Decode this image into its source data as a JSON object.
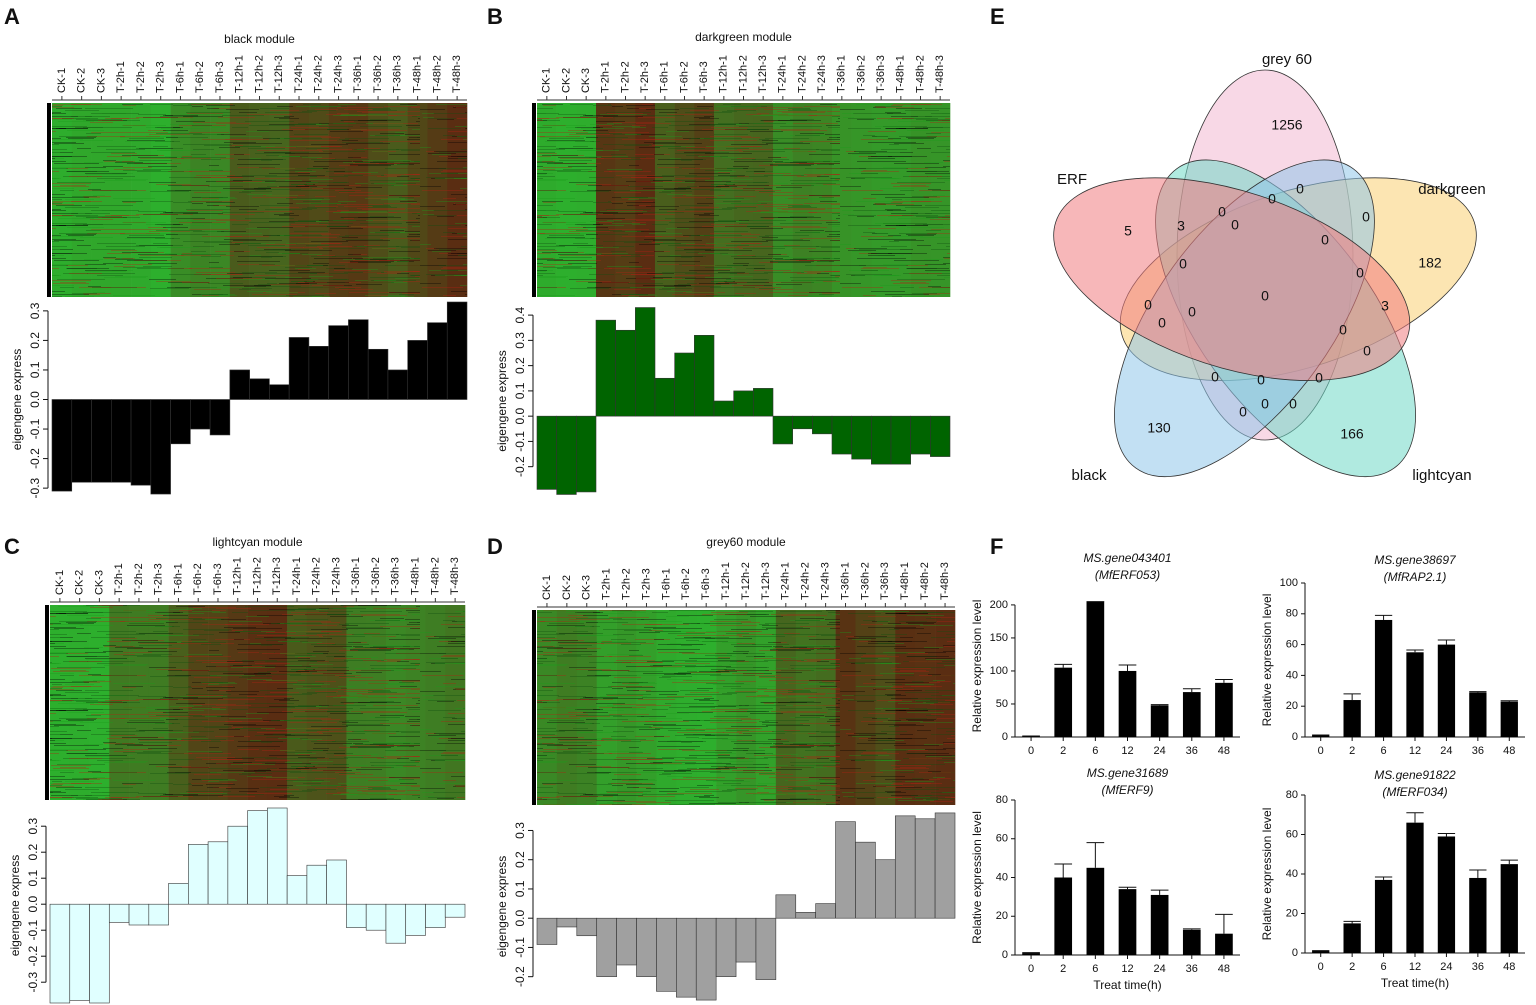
{
  "chart_data": [
    {
      "type": "bar",
      "label": "A",
      "title": "black module",
      "heatmap": true,
      "categories": [
        "CK-1",
        "CK-2",
        "CK-3",
        "T-2h-1",
        "T-2h-2",
        "T-2h-3",
        "T-6h-1",
        "T-6h-2",
        "T-6h-3",
        "T-12h-1",
        "T-12h-2",
        "T-12h-3",
        "T-24h-1",
        "T-24h-2",
        "T-24h-3",
        "T-36h-1",
        "T-36h-2",
        "T-36h-3",
        "T-48h-1",
        "T-48h-2",
        "T-48h-3"
      ],
      "values": [
        -0.31,
        -0.28,
        -0.28,
        -0.28,
        -0.29,
        -0.32,
        -0.15,
        -0.1,
        -0.12,
        0.1,
        0.07,
        0.05,
        0.21,
        0.18,
        0.25,
        0.27,
        0.17,
        0.1,
        0.2,
        0.26,
        0.33
      ],
      "color": "#000000",
      "ylabel": "eigengene express",
      "ylim": [
        -0.33,
        0.33
      ],
      "yticks": [
        -0.3,
        -0.2,
        -0.1,
        {
          "value": 0,
          "label": "0.0"
        },
        0.1,
        0.2,
        0.3
      ]
    },
    {
      "type": "bar",
      "label": "B",
      "title": "darkgreen module",
      "heatmap": true,
      "categories": [
        "CK-1",
        "CK-2",
        "CK-3",
        "T-2h-1",
        "T-2h-2",
        "T-2h-3",
        "T-6h-1",
        "T-6h-2",
        "T-6h-3",
        "T-12h-1",
        "T-12h-2",
        "T-12h-3",
        "T-24h-1",
        "T-24h-2",
        "T-24h-3",
        "T-36h-1",
        "T-36h-2",
        "T-36h-3",
        "T-48h-1",
        "T-48h-2",
        "T-48h-3"
      ],
      "values": [
        -0.29,
        -0.31,
        -0.3,
        0.38,
        0.34,
        0.43,
        0.15,
        0.25,
        0.32,
        0.06,
        0.1,
        0.11,
        -0.11,
        -0.05,
        -0.07,
        -0.15,
        -0.17,
        -0.19,
        -0.19,
        -0.15,
        -0.16
      ],
      "color": "#006400",
      "ylabel": "eigengene express",
      "ylim": [
        -0.32,
        0.44
      ],
      "yticks": [
        -0.2,
        -0.1,
        {
          "value": 0,
          "label": "0.0"
        },
        0.1,
        0.2,
        0.3,
        0.4
      ]
    },
    {
      "type": "bar",
      "label": "C",
      "title": "lightcyan module",
      "heatmap": true,
      "categories": [
        "CK-1",
        "CK-2",
        "CK-3",
        "T-2h-1",
        "T-2h-2",
        "T-2h-3",
        "T-6h-1",
        "T-6h-2",
        "T-6h-3",
        "T-12h-1",
        "T-12h-2",
        "T-12h-3",
        "T-24h-1",
        "T-24h-2",
        "T-24h-3",
        "T-36h-1",
        "T-36h-2",
        "T-36h-3",
        "T-48h-1",
        "T-48h-2",
        "T-48h-3"
      ],
      "values": [
        -0.38,
        -0.37,
        -0.38,
        -0.07,
        -0.08,
        -0.08,
        0.08,
        0.23,
        0.24,
        0.3,
        0.36,
        0.37,
        0.11,
        0.15,
        0.17,
        -0.09,
        -0.1,
        -0.15,
        -0.12,
        -0.09,
        -0.05
      ],
      "color": "#e0ffff",
      "ylabel": "eigengene express",
      "ylim": [
        -0.38,
        0.37
      ],
      "yticks": [
        -0.3,
        -0.2,
        -0.1,
        {
          "value": 0,
          "label": "0.0"
        },
        0.1,
        0.2,
        0.3
      ]
    },
    {
      "type": "bar",
      "label": "D",
      "title": "grey60 module",
      "heatmap": true,
      "categories": [
        "CK-1",
        "CK-2",
        "CK-3",
        "T-2h-1",
        "T-2h-2",
        "T-2h-3",
        "T-6h-1",
        "T-6h-2",
        "T-6h-3",
        "T-12h-1",
        "T-12h-2",
        "T-12h-3",
        "T-24h-1",
        "T-24h-2",
        "T-24h-3",
        "T-36h-1",
        "T-36h-2",
        "T-36h-3",
        "T-48h-1",
        "T-48h-2",
        "T-48h-3"
      ],
      "values": [
        -0.09,
        -0.03,
        -0.06,
        -0.2,
        -0.16,
        -0.2,
        -0.25,
        -0.27,
        -0.28,
        -0.2,
        -0.15,
        -0.21,
        0.08,
        0.02,
        0.05,
        0.33,
        0.26,
        0.2,
        0.35,
        0.34,
        0.36
      ],
      "color": "#a0a0a0",
      "ylabel": "eigengene express",
      "ylim": [
        -0.29,
        0.37
      ],
      "yticks": [
        -0.2,
        -0.1,
        {
          "value": 0,
          "label": "0.0"
        },
        0.1,
        0.2,
        0.3
      ]
    },
    {
      "type": "venn",
      "label": "E",
      "sets": [
        {
          "name": "grey 60",
          "color": "#f2b8d2"
        },
        {
          "name": "darkgreen",
          "color": "#f9cf72"
        },
        {
          "name": "lightcyan",
          "color": "#6fd8c6"
        },
        {
          "name": "black",
          "color": "#8fc6ea"
        },
        {
          "name": "ERF",
          "color": "#f07c80"
        }
      ],
      "regions": [
        1256,
        0,
        0,
        0,
        5,
        3,
        0,
        0,
        0,
        182,
        0,
        0,
        0,
        3,
        0,
        0,
        0,
        0,
        0,
        0,
        0,
        0,
        0,
        0,
        0,
        130,
        166
      ]
    },
    {
      "type": "bar",
      "label": "F",
      "title": "MS.gene043401",
      "subtitle": "(MfERF053)",
      "ylabel": "Relative expression level",
      "categories": [
        "0",
        "2",
        "6",
        "12",
        "24",
        "36",
        "48"
      ],
      "values": [
        1,
        105,
        205,
        100,
        48,
        68,
        82
      ],
      "errors": [
        0.5,
        5,
        0,
        9,
        1,
        5,
        5
      ],
      "color": "#000000",
      "ylim": [
        0,
        215
      ],
      "yticks": [
        0,
        50,
        100,
        150,
        200
      ]
    },
    {
      "type": "bar",
      "title": "MS.gene38697",
      "subtitle": "(MfRAP2.1)",
      "ylabel": "Relative expression level",
      "categories": [
        "0",
        "2",
        "6",
        "12",
        "24",
        "36",
        "48"
      ],
      "values": [
        1,
        24,
        76,
        55,
        60,
        29,
        23
      ],
      "errors": [
        0.3,
        4,
        3,
        1.5,
        3,
        0.5,
        0.5
      ],
      "color": "#000000",
      "ylim": [
        0,
        100
      ],
      "yticks": [
        0,
        20,
        40,
        60,
        80,
        100
      ]
    },
    {
      "type": "bar",
      "title": "MS.gene31689",
      "subtitle": "(MfERF9)",
      "ylabel": "Relative expression level",
      "xlabel": "Treat time(h)",
      "categories": [
        "0",
        "2",
        "6",
        "12",
        "24",
        "36",
        "48"
      ],
      "values": [
        1,
        40,
        45,
        34,
        31,
        13,
        11
      ],
      "errors": [
        0.2,
        7,
        13,
        1,
        2.5,
        0.5,
        10
      ],
      "color": "#000000",
      "ylim": [
        0,
        80
      ],
      "yticks": [
        0,
        20,
        40,
        60,
        80
      ]
    },
    {
      "type": "bar",
      "title": "MS.gene91822",
      "subtitle": "(MfERF034)",
      "ylabel": "Relative expression level",
      "xlabel": "Treat time(h)",
      "categories": [
        "0",
        "2",
        "6",
        "12",
        "24",
        "36",
        "48"
      ],
      "values": [
        1,
        15,
        37,
        66,
        59,
        38,
        45
      ],
      "errors": [
        0.2,
        1,
        1.5,
        5,
        1.5,
        4,
        2
      ],
      "color": "#000000",
      "ylim": [
        0,
        80
      ],
      "yticks": [
        0,
        20,
        40,
        60,
        80
      ]
    }
  ]
}
